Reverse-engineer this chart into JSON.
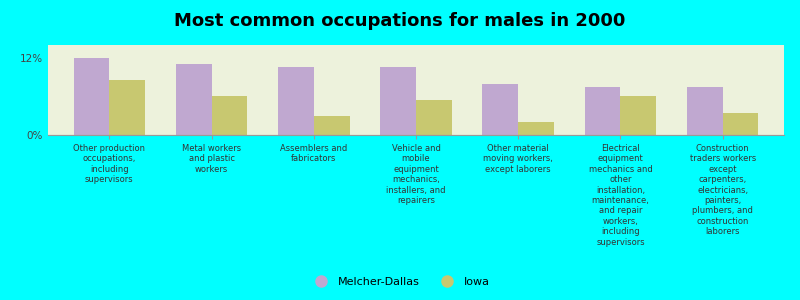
{
  "title": "Most common occupations for males in 2000",
  "background_color": "#00FFFF",
  "plot_background_color": "#EDF2DC",
  "categories": [
    "Other production\noccupations,\nincluding\nsupervisors",
    "Metal workers\nand plastic\nworkers",
    "Assemblers and\nfabricators",
    "Vehicle and\nmobile\nequipment\nmechanics,\ninstallers, and\nrepairers",
    "Other material\nmoving workers,\nexcept laborers",
    "Electrical\nequipment\nmechanics and\nother\ninstallation,\nmaintenance,\nand repair\nworkers,\nincluding\nsupervisors",
    "Construction\ntraders workers\nexcept\ncarpenters,\nelectricians,\npainters,\nplumbers, and\nconstruction\nlaborers"
  ],
  "melcher_dallas_values": [
    12.0,
    11.0,
    10.5,
    10.5,
    8.0,
    7.5,
    7.5
  ],
  "iowa_values": [
    8.5,
    6.0,
    3.0,
    5.5,
    2.0,
    6.0,
    3.5
  ],
  "melcher_dallas_color": "#C0A8D0",
  "iowa_color": "#C8C870",
  "ylim": [
    0,
    14
  ],
  "yticks": [
    0,
    12
  ],
  "ytick_labels": [
    "0%",
    "12%"
  ],
  "legend_melcher": "Melcher-Dallas",
  "legend_iowa": "Iowa",
  "bar_width": 0.35
}
